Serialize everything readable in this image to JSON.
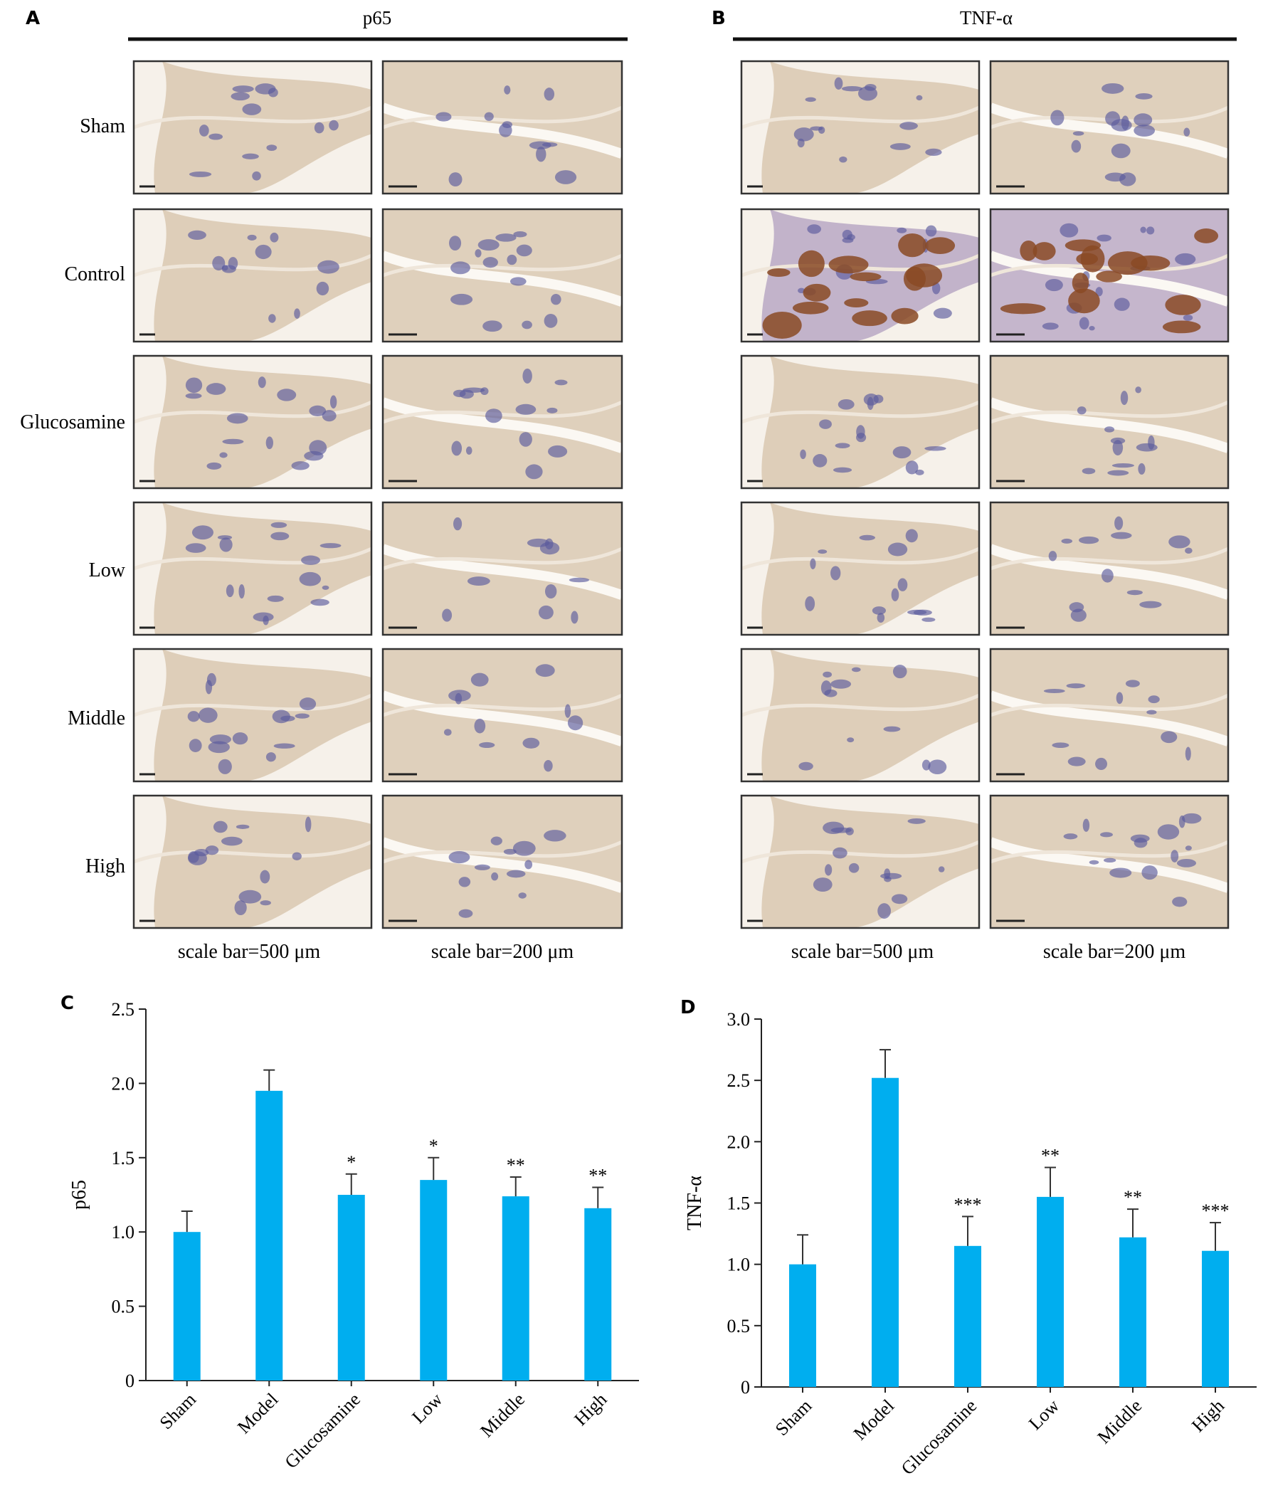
{
  "panelA": {
    "label": "A",
    "title": "p65",
    "rows": [
      "Sham",
      "Control",
      "Glucosamine",
      "Low",
      "Middle",
      "High"
    ],
    "scale_left": "scale bar=500 μm",
    "scale_right": "scale bar=200 μm"
  },
  "panelB": {
    "label": "B",
    "title": "TNF-α",
    "scale_left": "scale bar=500 μm",
    "scale_right": "scale bar=200 μm"
  },
  "colors": {
    "bar": "#00aeef",
    "tissue": "#d9c8b0",
    "nuclei": "#5b5a9c",
    "brown_stain": "#8a4a25",
    "frame": "#333333"
  },
  "chart_data": [
    {
      "panel": "C",
      "type": "bar",
      "categories": [
        "Sham",
        "Model",
        "Glucosamine",
        "Low",
        "Middle",
        "High"
      ],
      "values": [
        1.0,
        1.95,
        1.25,
        1.35,
        1.24,
        1.16
      ],
      "errors": [
        0.14,
        0.14,
        0.14,
        0.15,
        0.13,
        0.14
      ],
      "significance": [
        "",
        "",
        "*",
        "*",
        "**",
        "**"
      ],
      "ylabel": "p65",
      "ylim": [
        0,
        2.5
      ],
      "yticks": [
        0,
        0.5,
        1.0,
        1.5,
        2.0,
        2.5
      ],
      "ytick_labels": [
        "0",
        "0.5",
        "1.0",
        "1.5",
        "2.0",
        "2.5"
      ]
    },
    {
      "panel": "D",
      "type": "bar",
      "categories": [
        "Sham",
        "Model",
        "Glucosamine",
        "Low",
        "Middle",
        "High"
      ],
      "values": [
        1.0,
        2.52,
        1.15,
        1.55,
        1.22,
        1.11
      ],
      "errors": [
        0.24,
        0.23,
        0.24,
        0.24,
        0.23,
        0.23
      ],
      "significance": [
        "",
        "",
        "***",
        "**",
        "**",
        "***"
      ],
      "ylabel": "TNF-α",
      "ylim": [
        0,
        3.0
      ],
      "yticks": [
        0,
        0.5,
        1.0,
        1.5,
        2.0,
        2.5,
        3.0
      ],
      "ytick_labels": [
        "0",
        "0.5",
        "1.0",
        "1.5",
        "2.0",
        "2.5",
        "3.0"
      ]
    }
  ]
}
